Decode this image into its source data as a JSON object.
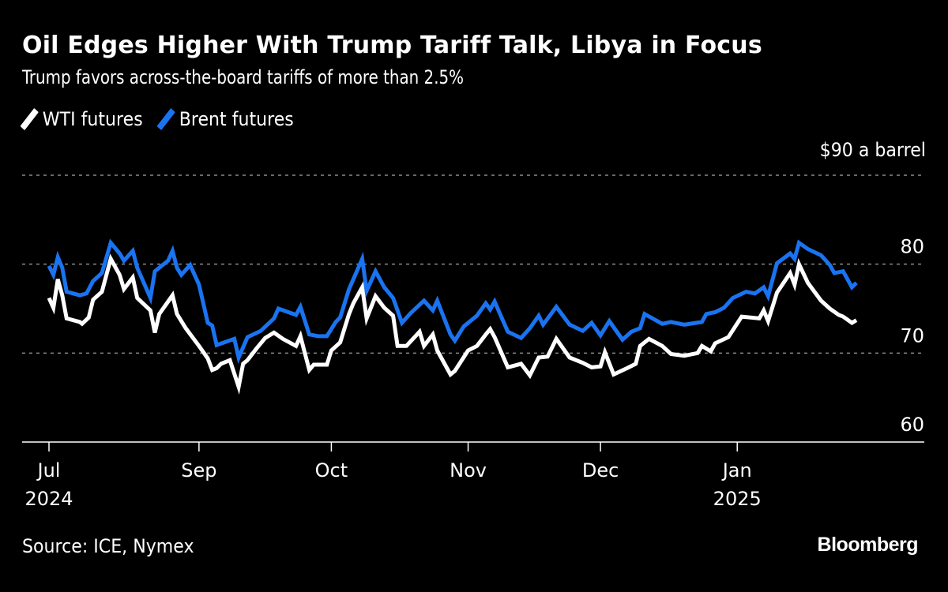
{
  "header": {
    "title": "Oil Edges Higher With Trump Tariff Talk, Libya in Focus",
    "subtitle": "Trump favors across-the-board tariffs of more than 2.5%"
  },
  "footer": {
    "source": "Source: ICE, Nymex",
    "brand": "Bloomberg"
  },
  "colors": {
    "background": "#000000",
    "wti": "#ffffff",
    "brent": "#1a73f0",
    "grid": "#8a8a8a"
  },
  "chart_data": {
    "type": "line",
    "title": "Oil Edges Higher With Trump Tariff Talk, Libya in Focus",
    "subtitle": "Trump favors across-the-board tariffs of more than 2.5%",
    "unit_label": "$90 a barrel",
    "xlabel": "",
    "ylabel": "$ a barrel",
    "ylim": [
      60,
      90
    ],
    "y_ticks": [
      {
        "value": 90,
        "label": "$90 a barrel"
      },
      {
        "value": 80,
        "label": "80"
      },
      {
        "value": 70,
        "label": "70"
      },
      {
        "value": 60,
        "label": "60"
      }
    ],
    "grid": true,
    "x_unit": "days since 2024-07-29",
    "xlim": [
      0,
      183
    ],
    "x_ticks": [
      {
        "day": 0,
        "label": "Jul",
        "sublabel": "2024"
      },
      {
        "day": 34,
        "label": "Sep",
        "sublabel": ""
      },
      {
        "day": 64,
        "label": "Oct",
        "sublabel": ""
      },
      {
        "day": 95,
        "label": "Nov",
        "sublabel": ""
      },
      {
        "day": 125,
        "label": "Dec",
        "sublabel": ""
      },
      {
        "day": 156,
        "label": "Jan",
        "sublabel": "2025"
      }
    ],
    "legend": "top-left",
    "series": [
      {
        "name": "WTI futures",
        "color": "#ffffff",
        "points": [
          [
            0,
            76.2
          ],
          [
            1,
            75.1
          ],
          [
            2,
            78.3
          ],
          [
            3,
            76.5
          ],
          [
            4,
            73.9
          ],
          [
            7,
            73.5
          ],
          [
            7.5,
            73.3
          ],
          [
            9,
            74.0
          ],
          [
            10,
            76.0
          ],
          [
            12,
            76.9
          ],
          [
            14,
            80.6
          ],
          [
            16,
            78.8
          ],
          [
            17,
            77.2
          ],
          [
            19,
            78.5
          ],
          [
            20,
            76.2
          ],
          [
            23,
            74.8
          ],
          [
            24,
            72.3
          ],
          [
            25,
            74.4
          ],
          [
            27,
            75.8
          ],
          [
            28,
            76.5
          ],
          [
            29,
            74.4
          ],
          [
            31,
            72.8
          ],
          [
            34,
            70.8
          ],
          [
            36,
            69.4
          ],
          [
            37,
            68.1
          ],
          [
            38,
            68.3
          ],
          [
            39,
            68.8
          ],
          [
            41,
            69.2
          ],
          [
            43,
            66.2
          ],
          [
            44,
            68.8
          ],
          [
            45,
            69.2
          ],
          [
            47,
            70.5
          ],
          [
            49,
            71.7
          ],
          [
            51,
            72.3
          ],
          [
            53,
            71.6
          ],
          [
            56,
            70.8
          ],
          [
            57,
            71.9
          ],
          [
            59,
            68.1
          ],
          [
            60,
            68.7
          ],
          [
            63,
            68.7
          ],
          [
            64,
            70.3
          ],
          [
            66,
            71.2
          ],
          [
            68,
            74.4
          ],
          [
            69,
            75.6
          ],
          [
            71,
            77.4
          ],
          [
            72,
            73.9
          ],
          [
            74,
            76.4
          ],
          [
            76,
            75.1
          ],
          [
            78,
            74.2
          ],
          [
            79,
            70.8
          ],
          [
            81,
            70.8
          ],
          [
            84,
            72.4
          ],
          [
            85,
            70.8
          ],
          [
            87,
            72.1
          ],
          [
            88,
            70.3
          ],
          [
            91,
            67.6
          ],
          [
            92,
            68.0
          ],
          [
            95,
            70.3
          ],
          [
            97,
            70.8
          ],
          [
            99,
            72.1
          ],
          [
            100,
            72.7
          ],
          [
            101,
            71.8
          ],
          [
            104,
            68.4
          ],
          [
            107,
            68.8
          ],
          [
            109,
            67.5
          ],
          [
            111,
            69.5
          ],
          [
            113,
            69.6
          ],
          [
            115,
            71.6
          ],
          [
            118,
            69.5
          ],
          [
            121,
            68.9
          ],
          [
            123,
            68.4
          ],
          [
            125,
            68.5
          ],
          [
            126,
            70.1
          ],
          [
            128,
            67.6
          ],
          [
            131,
            68.3
          ],
          [
            133,
            68.8
          ],
          [
            134,
            70.8
          ],
          [
            136,
            71.6
          ],
          [
            139,
            70.8
          ],
          [
            141,
            69.9
          ],
          [
            144,
            69.7
          ],
          [
            147,
            70.0
          ],
          [
            148,
            70.8
          ],
          [
            150,
            70.2
          ],
          [
            151,
            71.1
          ],
          [
            154,
            71.8
          ],
          [
            157,
            74.1
          ],
          [
            161,
            73.9
          ],
          [
            162,
            74.8
          ],
          [
            163,
            73.6
          ],
          [
            165,
            76.8
          ],
          [
            168,
            79.0
          ],
          [
            169,
            77.7
          ],
          [
            170,
            80.0
          ],
          [
            172,
            77.9
          ],
          [
            175,
            75.9
          ],
          [
            177,
            75.0
          ],
          [
            179,
            74.3
          ],
          [
            180,
            74.1
          ],
          [
            182,
            73.4
          ],
          [
            183,
            73.7
          ]
        ]
      },
      {
        "name": "Brent futures",
        "color": "#1a73f0",
        "points": [
          [
            0,
            79.8
          ],
          [
            1,
            78.8
          ],
          [
            2,
            80.8
          ],
          [
            3,
            79.6
          ],
          [
            4,
            76.9
          ],
          [
            7,
            76.5
          ],
          [
            8.5,
            76.7
          ],
          [
            10,
            78.1
          ],
          [
            12,
            79.0
          ],
          [
            14,
            82.4
          ],
          [
            16,
            81.2
          ],
          [
            17,
            80.4
          ],
          [
            19,
            81.5
          ],
          [
            20,
            79.6
          ],
          [
            23,
            76.2
          ],
          [
            24,
            79.2
          ],
          [
            27,
            80.4
          ],
          [
            28,
            81.5
          ],
          [
            29,
            79.6
          ],
          [
            30,
            78.8
          ],
          [
            32,
            79.9
          ],
          [
            34,
            77.7
          ],
          [
            36,
            73.4
          ],
          [
            37,
            73.1
          ],
          [
            38,
            70.9
          ],
          [
            42,
            71.6
          ],
          [
            43,
            69.5
          ],
          [
            45,
            71.8
          ],
          [
            48,
            72.5
          ],
          [
            51,
            73.9
          ],
          [
            52,
            75.0
          ],
          [
            56,
            74.3
          ],
          [
            57,
            75.2
          ],
          [
            59,
            72.1
          ],
          [
            61,
            71.9
          ],
          [
            63,
            71.9
          ],
          [
            65,
            73.5
          ],
          [
            66,
            74.0
          ],
          [
            68,
            77.2
          ],
          [
            69,
            78.3
          ],
          [
            71,
            80.6
          ],
          [
            72,
            77.0
          ],
          [
            74,
            79.2
          ],
          [
            76,
            77.4
          ],
          [
            78,
            76.2
          ],
          [
            80,
            73.4
          ],
          [
            82,
            74.5
          ],
          [
            85,
            75.9
          ],
          [
            87,
            74.8
          ],
          [
            88,
            75.9
          ],
          [
            91,
            72.1
          ],
          [
            92,
            71.4
          ],
          [
            94,
            73.0
          ],
          [
            97,
            74.2
          ],
          [
            99,
            75.6
          ],
          [
            100,
            74.9
          ],
          [
            101,
            75.8
          ],
          [
            104,
            72.4
          ],
          [
            107,
            71.7
          ],
          [
            109,
            72.8
          ],
          [
            111,
            74.2
          ],
          [
            112,
            73.2
          ],
          [
            115,
            75.2
          ],
          [
            118,
            73.2
          ],
          [
            121,
            72.5
          ],
          [
            123,
            73.4
          ],
          [
            125,
            72.0
          ],
          [
            127,
            73.6
          ],
          [
            129,
            72.2
          ],
          [
            130,
            71.5
          ],
          [
            132,
            72.4
          ],
          [
            134,
            72.8
          ],
          [
            135,
            74.4
          ],
          [
            139,
            73.3
          ],
          [
            141,
            73.5
          ],
          [
            144,
            73.2
          ],
          [
            148,
            73.5
          ],
          [
            149,
            74.4
          ],
          [
            151,
            74.6
          ],
          [
            153,
            75.1
          ],
          [
            155,
            76.2
          ],
          [
            158,
            76.9
          ],
          [
            160,
            76.7
          ],
          [
            162,
            77.4
          ],
          [
            163,
            76.4
          ],
          [
            165,
            80.1
          ],
          [
            168,
            81.2
          ],
          [
            169,
            80.6
          ],
          [
            170,
            82.4
          ],
          [
            172,
            81.7
          ],
          [
            175,
            81.0
          ],
          [
            177,
            79.9
          ],
          [
            178,
            79.0
          ],
          [
            180,
            79.2
          ],
          [
            182,
            77.4
          ],
          [
            183,
            77.9
          ]
        ]
      }
    ]
  }
}
